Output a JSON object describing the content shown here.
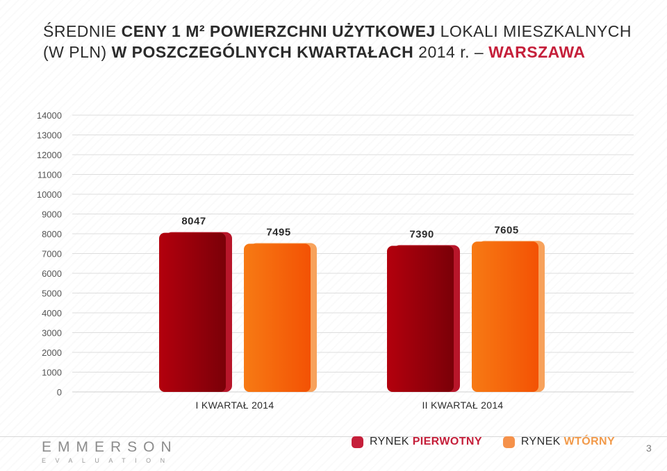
{
  "title": {
    "line1_prefix": "ŚREDNIE ",
    "line1_bold": "CENY 1 M² POWIERZCHNI UŻYTKOWEJ",
    "line1_suffix": " LOKALI MIESZKALNYCH",
    "line2_prefix": "(W PLN) ",
    "line2_bold": "W POSZCZEGÓLNYCH KWARTAŁACH",
    "line2_suffix": " 2014 r. – ",
    "line2_highlight": "WARSZAWA"
  },
  "chart_data": {
    "type": "bar",
    "categories": [
      "I KWARTAŁ 2014",
      "II KWARTAŁ 2014"
    ],
    "series": [
      {
        "name": "RYNEK PIERWOTNY",
        "values": [
          8047,
          7390
        ],
        "color": "#a3000f"
      },
      {
        "name": "RYNEK WTÓRNY",
        "values": [
          7495,
          7605
        ],
        "color": "#f5620a"
      }
    ],
    "yticks": [
      0,
      1000,
      2000,
      3000,
      4000,
      5000,
      6000,
      7000,
      8000,
      9000,
      10000,
      11000,
      12000,
      13000,
      14000
    ],
    "ylim": [
      0,
      14000
    ],
    "xlabel": "",
    "ylabel": "",
    "grid": true,
    "legend_position": "bottom"
  },
  "legend": [
    {
      "prefix": "RYNEK ",
      "bold": "PIERWOTNY",
      "bold_color": "#c51f3a",
      "swatch_color": "#c51f3a"
    },
    {
      "prefix": "RYNEK ",
      "bold": "WTÓRNY",
      "bold_color": "#f29a4a",
      "swatch_color": "#f5914a"
    }
  ],
  "logo": {
    "main": "EMMERSON",
    "sub": "EVALUATION"
  },
  "page_number": "3"
}
